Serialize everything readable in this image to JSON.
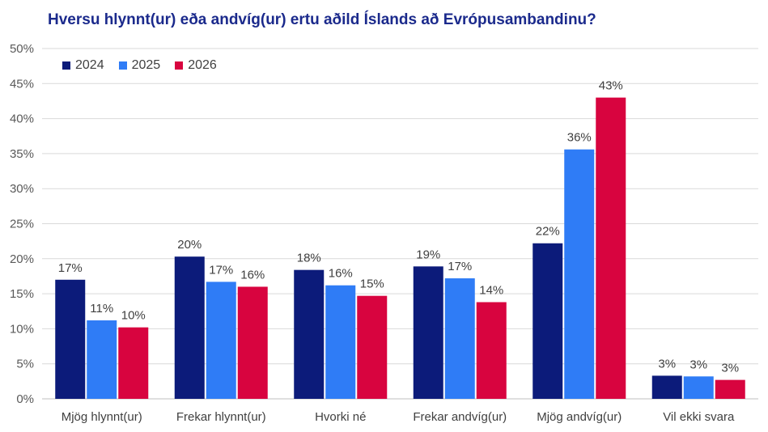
{
  "chart_data": {
    "type": "bar",
    "title": "Hversu hlynnt(ur) eða andvíg(ur) ertu aðild Íslands að Evrópusambandinu?",
    "categories": [
      "Mjög hlynnt(ur)",
      "Frekar hlynnt(ur)",
      "Hvorki né",
      "Frekar andvíg(ur)",
      "Mjög andvíg(ur)",
      "Vil ekki svara"
    ],
    "series": [
      {
        "name": "2024",
        "color": "#0c1b7a",
        "values": [
          17.0,
          20.3,
          18.4,
          18.9,
          22.2,
          3.3
        ],
        "labels": [
          "17%",
          "20%",
          "18%",
          "19%",
          "22%",
          "3%"
        ]
      },
      {
        "name": "2025",
        "color": "#2f7cf6",
        "values": [
          11.2,
          16.7,
          16.2,
          17.2,
          35.6,
          3.2
        ],
        "labels": [
          "11%",
          "17%",
          "16%",
          "17%",
          "36%",
          "3%"
        ]
      },
      {
        "name": "2026",
        "color": "#d8043f",
        "values": [
          10.2,
          16.0,
          14.7,
          13.8,
          43.0,
          2.7
        ],
        "labels": [
          "10%",
          "16%",
          "15%",
          "14%",
          "43%",
          "3%"
        ]
      }
    ],
    "yticks": [
      "0%",
      "5%",
      "10%",
      "15%",
      "20%",
      "25%",
      "30%",
      "35%",
      "40%",
      "45%",
      "50%"
    ],
    "ylim": [
      0,
      50
    ],
    "xlabel": "",
    "ylabel": "",
    "legend_position": "top-left",
    "grid": true
  }
}
